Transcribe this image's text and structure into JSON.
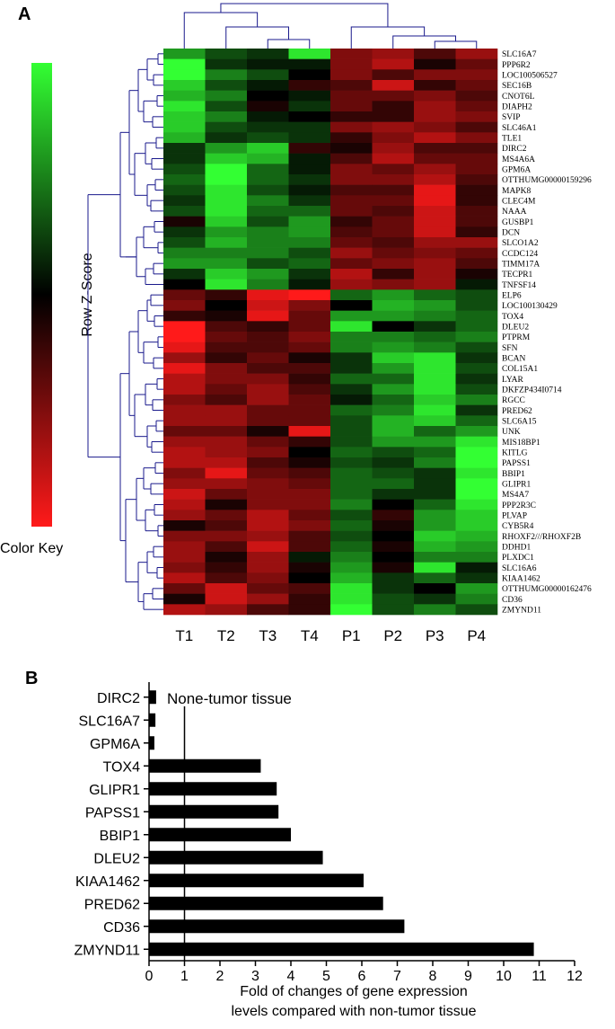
{
  "chart_data": [
    {
      "type": "heatmap",
      "panel_label": "A",
      "color_key": {
        "title": "Color Key",
        "axis_label": "Row Z-Score",
        "high_color": "#33ff33",
        "mid_color": "#000000",
        "low_color": "#ff1a1a"
      },
      "columns": [
        "T1",
        "T2",
        "T3",
        "T4",
        "P1",
        "P2",
        "P3",
        "P4"
      ],
      "rows": [
        "SLC16A7",
        "PPP6R2",
        "LOC100506527",
        "SEC16B",
        "CNOT6L",
        "DIAPH2",
        "SVIP",
        "SLC46A1",
        "TLE1",
        "DIRC2",
        "MS4A6A",
        "GPM6A",
        "OTTHUMG00000159296",
        "MAPK8",
        "CLEC4M",
        "NAAA",
        "GUSBP1",
        "DCN",
        "SLCO1A2",
        "CCDC124",
        "TIMM17A",
        "TECPR1",
        "TNFSF14",
        "ELP6",
        "LOC100130429",
        "TOX4",
        "DLEU2",
        "PTPRM",
        "SFN",
        "BCAN",
        "COL15A1",
        "LYAR",
        "DKFZP434I0714",
        "RGCC",
        "PRED62",
        "SLC6A15",
        "UNK",
        "MIS18BP1",
        "KITLG",
        "PAPSS1",
        "BBIP1",
        "GLIPR1",
        "MS4A7",
        "PPP2R3C",
        "PLVAP",
        "CYB5R4",
        "RHOXF2///RHOXF2B",
        "DDHD1",
        "PLXDC1",
        "SLC16A6",
        "KIAA1462",
        "OTTHUMG00000162476",
        "CD36",
        "ZMYND11"
      ],
      "z_scores": [
        [
          0.6,
          0.3,
          0.2,
          0.9,
          -0.5,
          -0.6,
          -0.3,
          -0.6
        ],
        [
          1.0,
          0.2,
          0.1,
          0.1,
          -0.5,
          -0.7,
          -0.1,
          -0.4
        ],
        [
          1.0,
          0.5,
          0.3,
          0.0,
          -0.5,
          -0.3,
          -0.5,
          -0.5
        ],
        [
          0.8,
          0.3,
          0.1,
          -0.2,
          -0.3,
          -0.8,
          -0.2,
          -0.4
        ],
        [
          0.7,
          0.5,
          0.0,
          0.1,
          -0.4,
          -0.4,
          -0.5,
          -0.3
        ],
        [
          0.9,
          0.3,
          -0.1,
          0.2,
          -0.4,
          -0.2,
          -0.6,
          -0.4
        ],
        [
          0.8,
          0.5,
          0.1,
          0.0,
          -0.2,
          -0.2,
          -0.6,
          -0.5
        ],
        [
          0.8,
          0.3,
          0.2,
          0.2,
          -0.5,
          -0.6,
          -0.5,
          -0.3
        ],
        [
          0.7,
          0.2,
          0.3,
          0.2,
          -0.2,
          -0.5,
          -0.7,
          -0.5
        ],
        [
          0.2,
          0.6,
          0.8,
          -0.2,
          -0.1,
          -0.6,
          -0.3,
          -0.3
        ],
        [
          0.2,
          0.8,
          0.7,
          0.1,
          -0.3,
          -0.7,
          -0.4,
          -0.4
        ],
        [
          0.3,
          1.0,
          0.4,
          0.1,
          -0.5,
          -0.4,
          -0.6,
          -0.4
        ],
        [
          0.4,
          1.0,
          0.4,
          0.2,
          -0.5,
          -0.5,
          -0.7,
          -0.3
        ],
        [
          0.3,
          0.9,
          0.3,
          0.1,
          -0.3,
          -0.3,
          -0.9,
          -0.2
        ],
        [
          0.2,
          0.9,
          0.5,
          0.2,
          -0.4,
          -0.4,
          -0.9,
          -0.2
        ],
        [
          0.3,
          0.9,
          0.4,
          0.4,
          -0.4,
          -0.3,
          -0.8,
          -0.3
        ],
        [
          -0.1,
          0.8,
          0.3,
          0.6,
          -0.2,
          -0.4,
          -0.8,
          -0.3
        ],
        [
          0.2,
          0.6,
          0.5,
          0.6,
          -0.3,
          -0.4,
          -0.8,
          -0.2
        ],
        [
          0.3,
          0.7,
          0.5,
          0.5,
          -0.4,
          -0.3,
          -0.6,
          -0.6
        ],
        [
          0.5,
          0.5,
          0.5,
          0.3,
          -0.6,
          -0.4,
          -0.5,
          -0.4
        ],
        [
          0.6,
          0.6,
          0.3,
          0.4,
          -0.4,
          -0.5,
          -0.6,
          -0.3
        ],
        [
          0.2,
          0.8,
          0.6,
          0.2,
          -0.7,
          -0.2,
          -0.6,
          -0.1
        ],
        [
          0.0,
          0.9,
          0.5,
          0.1,
          -0.6,
          -0.5,
          -0.6,
          0.1
        ],
        [
          -0.4,
          -0.2,
          -0.9,
          -1.0,
          0.4,
          0.6,
          0.4,
          0.3
        ],
        [
          -0.5,
          0.0,
          -0.8,
          -0.5,
          0.0,
          0.7,
          0.6,
          0.3
        ],
        [
          -0.2,
          -0.1,
          -0.9,
          -0.4,
          0.6,
          0.6,
          0.5,
          0.4
        ],
        [
          -1.0,
          -0.3,
          -0.2,
          -0.4,
          0.9,
          0.0,
          0.2,
          0.4
        ],
        [
          -1.0,
          -0.4,
          -0.3,
          -0.5,
          0.5,
          0.5,
          0.4,
          0.5
        ],
        [
          -0.9,
          -0.3,
          -0.3,
          -0.4,
          0.5,
          0.6,
          0.5,
          0.3
        ],
        [
          -0.6,
          -0.2,
          -0.4,
          -0.1,
          0.2,
          0.8,
          0.9,
          0.2
        ],
        [
          -0.9,
          -0.5,
          -0.3,
          -0.3,
          0.2,
          0.6,
          0.9,
          0.3
        ],
        [
          -0.7,
          -0.5,
          -0.5,
          -0.2,
          0.4,
          0.4,
          0.9,
          0.2
        ],
        [
          -0.7,
          -0.4,
          -0.6,
          -0.3,
          0.2,
          0.6,
          0.9,
          0.3
        ],
        [
          -0.5,
          -0.3,
          -0.6,
          -0.4,
          0.1,
          0.4,
          0.8,
          0.5
        ],
        [
          -0.6,
          -0.6,
          -0.4,
          -0.4,
          0.4,
          0.5,
          0.9,
          0.2
        ],
        [
          -0.6,
          -0.6,
          -0.4,
          -0.4,
          0.3,
          0.7,
          0.8,
          0.4
        ],
        [
          -0.4,
          -0.4,
          -0.1,
          -0.9,
          0.3,
          0.7,
          0.4,
          0.6
        ],
        [
          -0.6,
          -0.6,
          -0.4,
          -0.2,
          0.3,
          0.6,
          0.6,
          0.9
        ],
        [
          -0.7,
          -0.6,
          -0.5,
          0.0,
          0.4,
          0.3,
          0.4,
          1.0
        ],
        [
          -0.7,
          -0.7,
          -0.3,
          -0.1,
          0.3,
          0.2,
          0.5,
          1.0
        ],
        [
          -0.5,
          -0.9,
          -0.4,
          -0.3,
          0.4,
          0.3,
          0.2,
          0.9
        ],
        [
          -0.6,
          -0.6,
          -0.5,
          -0.4,
          0.4,
          0.4,
          0.2,
          1.0
        ],
        [
          -0.8,
          -0.4,
          -0.5,
          -0.5,
          0.4,
          0.2,
          0.2,
          1.0
        ],
        [
          -0.7,
          -0.1,
          -0.5,
          -0.5,
          0.5,
          0.0,
          0.4,
          0.9
        ],
        [
          -0.6,
          -0.4,
          -0.7,
          -0.4,
          0.3,
          -0.2,
          0.6,
          0.8
        ],
        [
          -0.1,
          -0.3,
          -0.7,
          -0.5,
          0.4,
          -0.1,
          0.6,
          0.8
        ],
        [
          -0.5,
          -0.5,
          -0.6,
          -0.3,
          0.3,
          0.0,
          0.8,
          0.7
        ],
        [
          -0.6,
          -0.3,
          -0.8,
          -0.3,
          0.4,
          -0.1,
          0.7,
          0.6
        ],
        [
          -0.6,
          -0.1,
          -0.6,
          0.1,
          0.5,
          0.0,
          0.5,
          0.5
        ],
        [
          -0.5,
          -0.2,
          -0.6,
          -0.1,
          0.6,
          -0.1,
          0.9,
          0.1
        ],
        [
          -0.7,
          -0.3,
          -0.5,
          0.0,
          0.7,
          0.2,
          0.4,
          0.2
        ],
        [
          -0.4,
          -0.8,
          -0.4,
          -0.3,
          0.9,
          0.2,
          0.0,
          0.6
        ],
        [
          -0.1,
          -0.8,
          -0.6,
          -0.2,
          0.9,
          0.3,
          0.2,
          0.5
        ],
        [
          -0.7,
          -0.6,
          -0.3,
          -0.2,
          1.0,
          0.3,
          0.5,
          0.3
        ]
      ]
    },
    {
      "type": "bar",
      "orientation": "horizontal",
      "panel_label": "B",
      "categories": [
        "DIRC2",
        "SLC16A7",
        "GPM6A",
        "TOX4",
        "GLIPR1",
        "PAPSS1",
        "BBIP1",
        "DLEU2",
        "KIAA1462",
        "PRED62",
        "CD36",
        "ZMYND11"
      ],
      "values": [
        0.2,
        0.18,
        0.15,
        3.15,
        3.6,
        3.65,
        4.0,
        4.9,
        6.05,
        6.6,
        7.2,
        10.85
      ],
      "xlabel_line1": "Fold of changes of gene expression",
      "xlabel_line2": "levels compared with non-tumor tissue",
      "xlim": [
        0,
        12
      ],
      "xticks": [
        "0",
        "1",
        "2",
        "3",
        "4",
        "5",
        "6",
        "7",
        "8",
        "9",
        "10",
        "11",
        "12"
      ],
      "reference_line": 1,
      "annotation": "None-tumor tissue",
      "bar_color": "#000000",
      "grid": false
    }
  ]
}
